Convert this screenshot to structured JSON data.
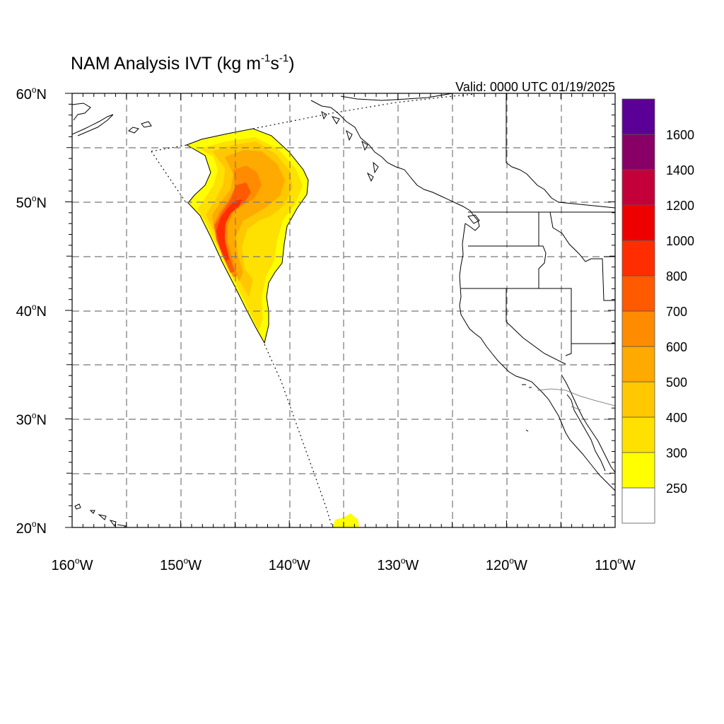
{
  "title": {
    "main": "NAM Analysis IVT (kg m",
    "exp1": "-1",
    "mid": "s",
    "exp2": "-1",
    "close": ")"
  },
  "valid_text": "Valid: 0000 UTC 01/19/2025",
  "map": {
    "lon_range": [
      -160,
      -110
    ],
    "lat_range": [
      20,
      60
    ],
    "grid_lon_step": 5,
    "grid_lat_step": 5,
    "lat_labels": [
      {
        "lat": 60,
        "num": "60",
        "hemi": "N"
      },
      {
        "lat": 50,
        "num": "50",
        "hemi": "N"
      },
      {
        "lat": 40,
        "num": "40",
        "hemi": "N"
      },
      {
        "lat": 30,
        "num": "30",
        "hemi": "N"
      },
      {
        "lat": 20,
        "num": "20",
        "hemi": "N"
      }
    ],
    "lon_labels": [
      {
        "lon": -160,
        "num": "160",
        "hemi": "W"
      },
      {
        "lon": -150,
        "num": "150",
        "hemi": "W"
      },
      {
        "lon": -140,
        "num": "140",
        "hemi": "W"
      },
      {
        "lon": -130,
        "num": "130",
        "hemi": "W"
      },
      {
        "lon": -120,
        "num": "120",
        "hemi": "W"
      },
      {
        "lon": -110,
        "num": "110",
        "hemi": "W"
      }
    ]
  },
  "colorbar": {
    "colors": [
      "#ffffff",
      "#ffff00",
      "#ffe100",
      "#ffc800",
      "#ffaa00",
      "#ff8c00",
      "#ff5a00",
      "#ff2d00",
      "#ee0000",
      "#c4003a",
      "#880066",
      "#5a0096"
    ],
    "labels": [
      "250",
      "300",
      "400",
      "500",
      "600",
      "700",
      "800",
      "1000",
      "1200",
      "1400",
      "1600"
    ]
  },
  "colors": {
    "ivt_250": "#ffff00",
    "ivt_300": "#ffe100",
    "ivt_400": "#ffc800",
    "ivt_500": "#ffaa00",
    "ivt_600": "#ff8c00",
    "ivt_700": "#ff5a00",
    "ivt_800": "#ff2d00"
  }
}
